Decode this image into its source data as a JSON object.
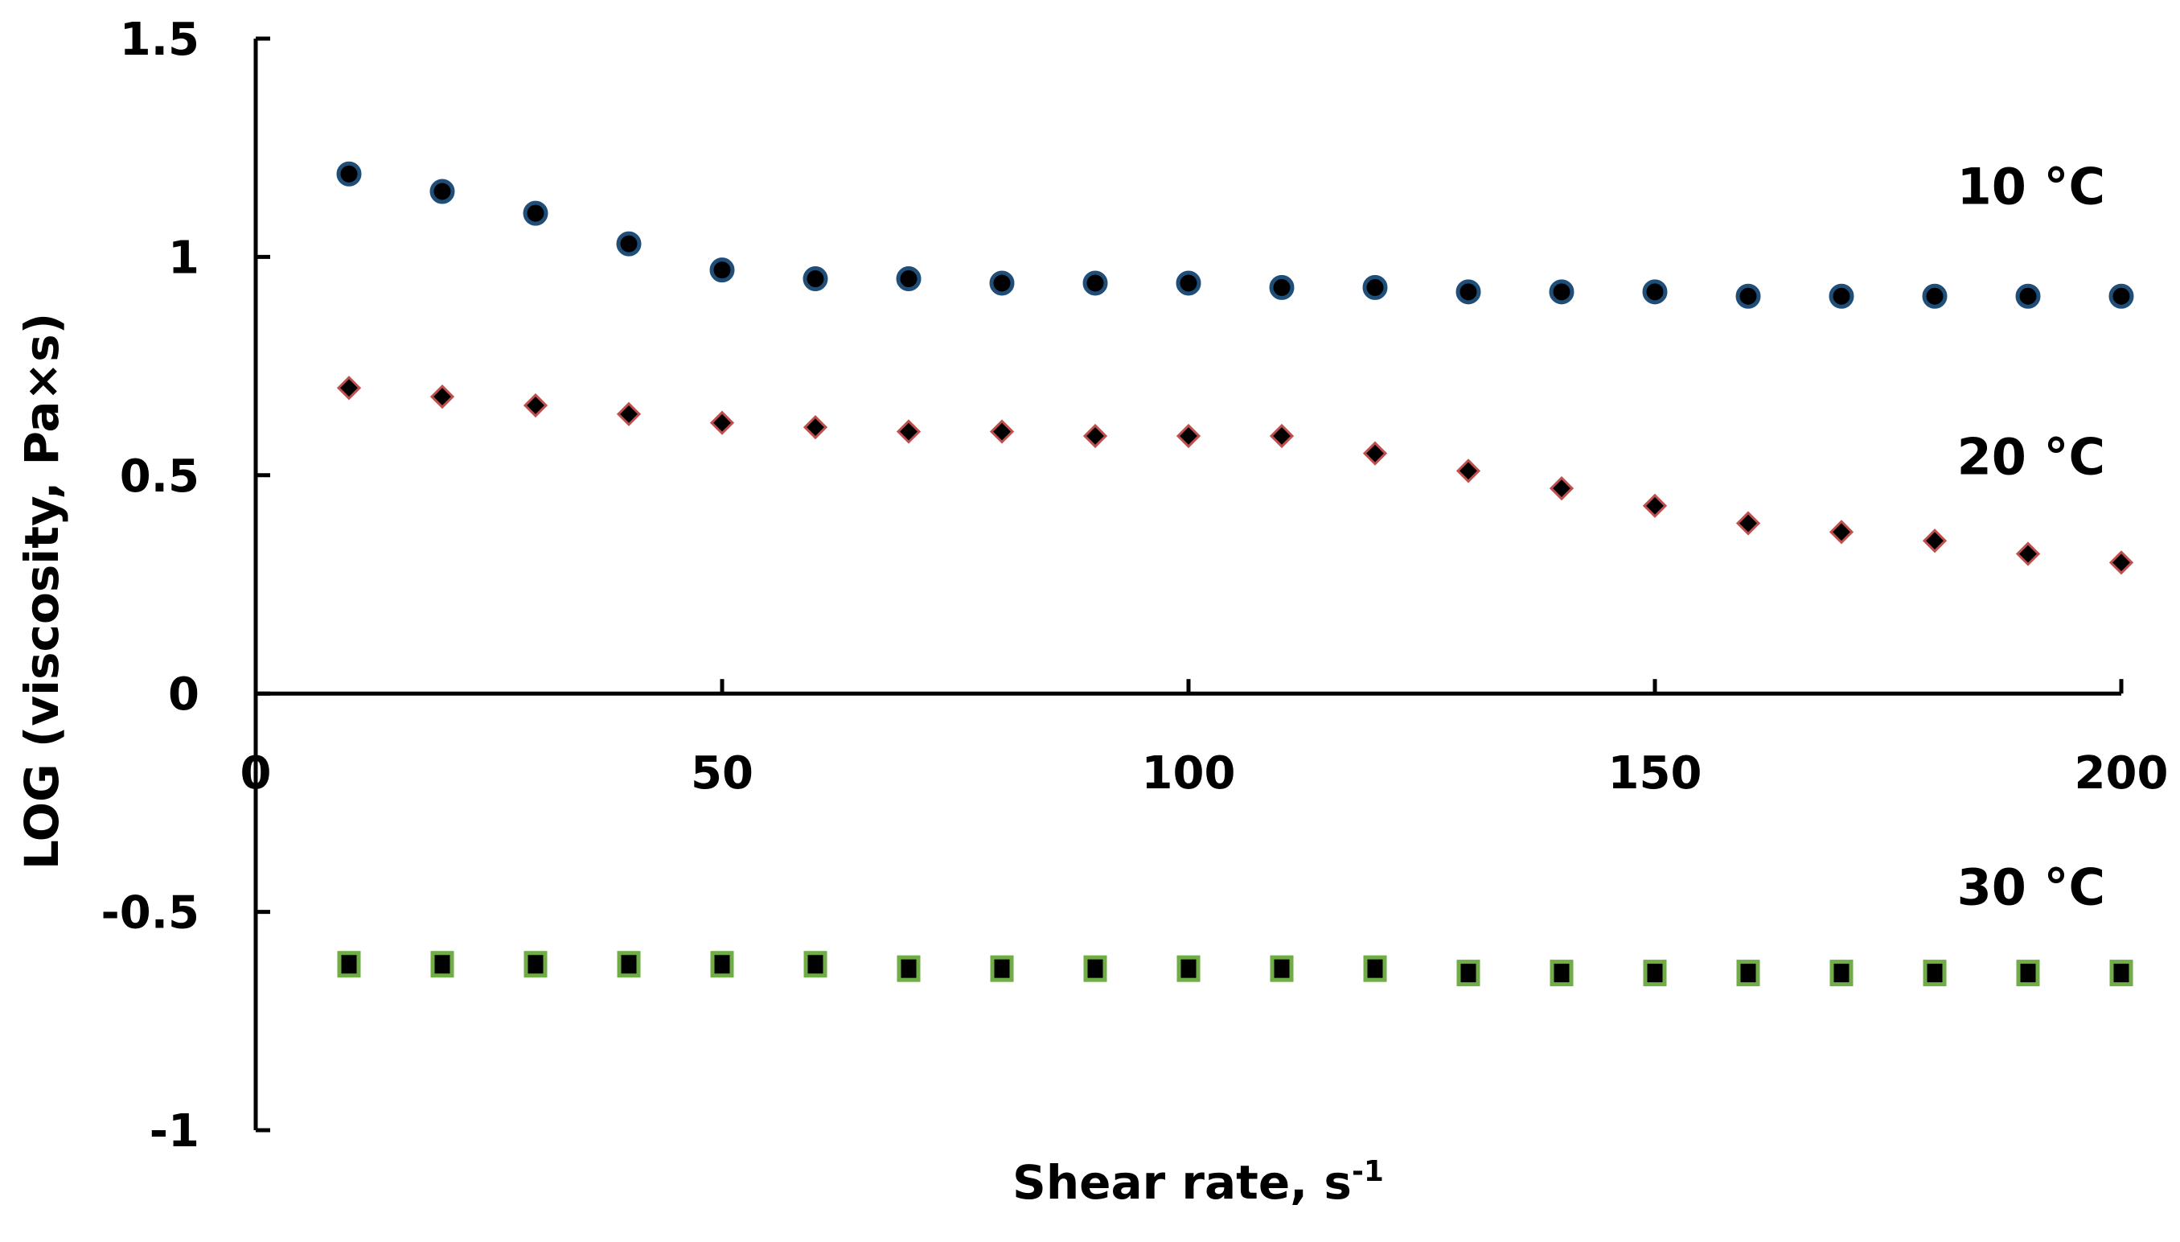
{
  "chart_data": {
    "type": "scatter",
    "title": "",
    "xlabel": "Shear rate, s",
    "xlabel_superscript": "-1",
    "ylabel": "LOG (viscosity,  Pa×s)",
    "xlim": [
      0,
      200
    ],
    "ylim": [
      -1,
      1.5
    ],
    "x_ticks": [
      0,
      50,
      100,
      150,
      200
    ],
    "x_tick_labels": [
      "0",
      "50",
      "100",
      "150",
      "200"
    ],
    "y_ticks": [
      1.5,
      1,
      0.5,
      0,
      -0.5,
      -1
    ],
    "y_tick_labels": [
      "1.5",
      "1",
      "0.5",
      "0",
      "-0.5",
      "-1"
    ],
    "grid": false,
    "legend": "none",
    "series": [
      {
        "name": "10 °C",
        "marker": "circle",
        "color": "#1f4e79",
        "x": [
          10,
          20,
          30,
          40,
          50,
          60,
          70,
          80,
          90,
          100,
          110,
          120,
          130,
          140,
          150,
          160,
          170,
          180,
          190,
          200
        ],
        "y": [
          1.19,
          1.15,
          1.1,
          1.03,
          0.97,
          0.95,
          0.95,
          0.94,
          0.94,
          0.94,
          0.93,
          0.93,
          0.92,
          0.92,
          0.92,
          0.91,
          0.91,
          0.91,
          0.91,
          0.91
        ]
      },
      {
        "name": "20 °C",
        "marker": "diamond",
        "color": "#c0504d",
        "x": [
          10,
          20,
          30,
          40,
          50,
          60,
          70,
          80,
          90,
          100,
          110,
          120,
          130,
          140,
          150,
          160,
          170,
          180,
          190,
          200
        ],
        "y": [
          0.7,
          0.68,
          0.66,
          0.64,
          0.62,
          0.61,
          0.6,
          0.6,
          0.59,
          0.59,
          0.59,
          0.55,
          0.51,
          0.47,
          0.43,
          0.39,
          0.37,
          0.35,
          0.32,
          0.3
        ]
      },
      {
        "name": "30 °C",
        "marker": "square",
        "color": "#70ad47",
        "x": [
          10,
          20,
          30,
          40,
          50,
          60,
          70,
          80,
          90,
          100,
          110,
          120,
          130,
          140,
          150,
          160,
          170,
          180,
          190,
          200
        ],
        "y": [
          -0.62,
          -0.62,
          -0.62,
          -0.62,
          -0.62,
          -0.62,
          -0.63,
          -0.63,
          -0.63,
          -0.63,
          -0.63,
          -0.63,
          -0.64,
          -0.64,
          -0.64,
          -0.64,
          -0.64,
          -0.64,
          -0.64,
          -0.64
        ]
      }
    ],
    "annotations": [
      {
        "text": "10 °C",
        "series": 0
      },
      {
        "text": "20 °C",
        "series": 1
      },
      {
        "text": "30 °C",
        "series": 2
      }
    ]
  }
}
